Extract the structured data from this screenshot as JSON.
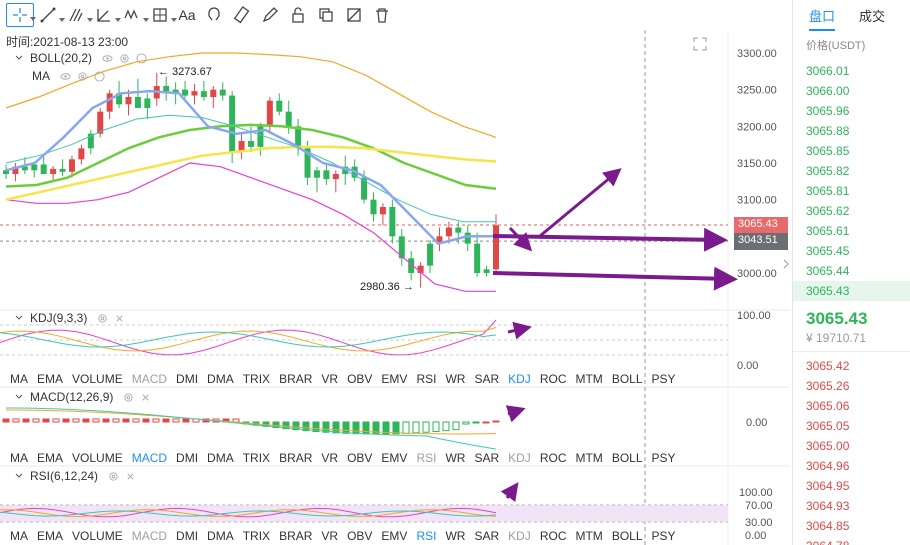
{
  "toolbar": {
    "tools": [
      {
        "name": "crosshair-icon",
        "selected": true
      },
      {
        "name": "line-tool-icon"
      },
      {
        "name": "channel-tool-icon"
      },
      {
        "name": "angle-tool-icon"
      },
      {
        "name": "wave-tool-icon"
      },
      {
        "name": "measure-tool-icon"
      },
      {
        "name": "text-tool-icon",
        "label": "Aa"
      },
      {
        "name": "magnet-icon"
      },
      {
        "name": "ruler-icon"
      },
      {
        "name": "pen-icon"
      },
      {
        "name": "lock-icon"
      },
      {
        "name": "layers-icon"
      },
      {
        "name": "hide-icon"
      },
      {
        "name": "trash-icon"
      }
    ]
  },
  "chart": {
    "time_label": "时间:2021-08-13 23:00",
    "boll_label": "BOLL(20,2)",
    "ma_label": "MA",
    "high_annotation": "← 3273.67",
    "low_annotation": "2980.36 →",
    "price_axis": [
      "3300.00",
      "3250.00",
      "3200.00",
      "3150.00",
      "3100.00",
      "3050.00",
      "3000.00"
    ],
    "last_price_tag": "3065.43",
    "crosshair_price_tag": "3043.51"
  },
  "kdj_pane": {
    "label": "KDJ(9,3,3)",
    "axis": [
      "100.00",
      "0.00"
    ]
  },
  "macd_pane": {
    "label": "MACD(12,26,9)",
    "axis": [
      "0.00"
    ]
  },
  "rsi_pane": {
    "label": "RSI(6,12,24)",
    "axis": [
      "100.00",
      "70.00",
      "30.00",
      "0.00"
    ]
  },
  "indicator_tabs": [
    "MA",
    "EMA",
    "VOLUME",
    "MACD",
    "DMI",
    "DMA",
    "TRIX",
    "BRAR",
    "VR",
    "OBV",
    "EMV",
    "RSI",
    "WR",
    "SAR",
    "KDJ",
    "ROC",
    "MTM",
    "BOLL",
    "PSY"
  ],
  "side": {
    "tabs": [
      "盘口",
      "成交"
    ],
    "header": "价格(USDT)",
    "asks": [
      "3066.01",
      "3066.00",
      "3065.96",
      "3065.88",
      "3065.85",
      "3065.82",
      "3065.81",
      "3065.62",
      "3065.61",
      "3065.45",
      "3065.44",
      "3065.43"
    ],
    "last_price": "3065.43",
    "last_sub": "¥ 19710.71",
    "bids": [
      "3065.42",
      "3065.26",
      "3065.06",
      "3065.05",
      "3065.00",
      "3064.96",
      "3064.95",
      "3064.93",
      "3064.85",
      "3064.78"
    ]
  },
  "colors": {
    "up": "#2eb55a",
    "down": "#e04848",
    "accent": "#1f8ef1",
    "boll_upper": "#f5a623",
    "boll_lower": "#e73fd1",
    "ma_mid": "#6ccc3c",
    "ma_yellow": "#f7e34a",
    "ma_blue": "#8aa6f0",
    "ma_teal": "#3cc8b4",
    "arrow": "#7b1a8c"
  }
}
